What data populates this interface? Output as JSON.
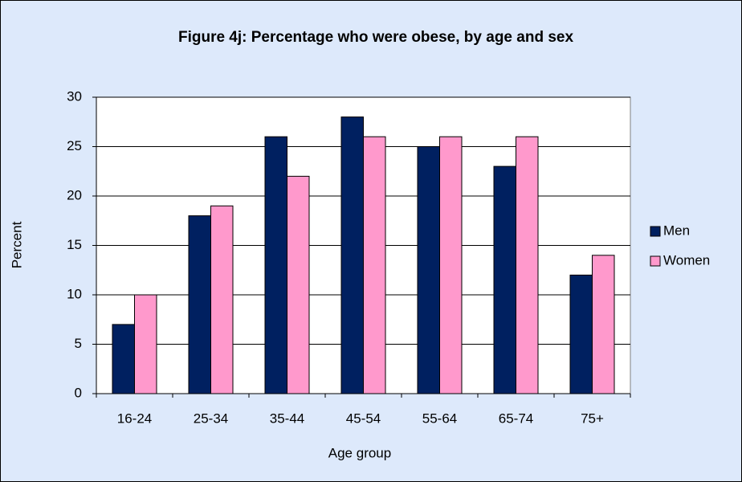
{
  "chart_data": {
    "type": "bar",
    "title": "Figure 4j: Percentage who were obese, by age and sex",
    "x_label": "Age group",
    "y_label": "Percent",
    "categories": [
      "16-24",
      "25-34",
      "35-44",
      "45-54",
      "55-64",
      "65-74",
      "75+"
    ],
    "series": [
      {
        "name": "Men",
        "color": "#002060",
        "values": [
          7,
          18,
          26,
          28,
          25,
          23,
          12
        ]
      },
      {
        "name": "Women",
        "color": "#ff99cc",
        "values": [
          10,
          19,
          22,
          26,
          26,
          26,
          14
        ]
      }
    ],
    "ylim": [
      0,
      30
    ],
    "yticks": [
      0,
      5,
      10,
      15,
      20,
      25,
      30
    ],
    "grid": true,
    "legend": "right"
  }
}
